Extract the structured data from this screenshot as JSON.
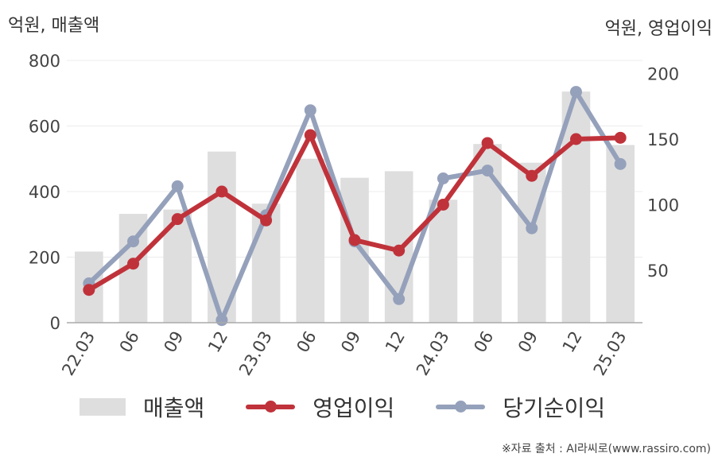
{
  "units": {
    "left": "억원, 매출액",
    "right": "억원, 영업이익"
  },
  "chart_data": {
    "type": "bar+line",
    "categories": [
      "22.03",
      "06",
      "09",
      "12",
      "23.03",
      "06",
      "09",
      "12",
      "24.03",
      "06",
      "09",
      "12",
      "25.03"
    ],
    "left_axis": {
      "ticks": [
        "0",
        "200",
        "400",
        "600",
        "800"
      ],
      "range": [
        0,
        800
      ]
    },
    "right_axis": {
      "ticks": [
        "50",
        "100",
        "150",
        "200"
      ],
      "range": [
        10,
        210
      ]
    },
    "grid": true,
    "legend_position": "bottom",
    "series": [
      {
        "name": "매출액",
        "type": "bar",
        "axis": "left",
        "color": "#dedede",
        "values": [
          217,
          332,
          345,
          522,
          363,
          500,
          442,
          462,
          375,
          545,
          488,
          705,
          542
        ]
      },
      {
        "name": "영업이익",
        "type": "line",
        "axis": "right",
        "color": "#c0323a",
        "values": [
          35,
          55,
          89,
          110,
          88,
          153,
          73,
          65,
          100,
          147,
          122,
          150,
          151
        ]
      },
      {
        "name": "당기순이익",
        "type": "line",
        "axis": "right",
        "color": "#95a1bb",
        "values": [
          40,
          72,
          114,
          12,
          92,
          172,
          72,
          28,
          120,
          126,
          82,
          186,
          131
        ]
      }
    ]
  },
  "source": "※자료 출처 : AI라씨로(www.rassiro.com)"
}
